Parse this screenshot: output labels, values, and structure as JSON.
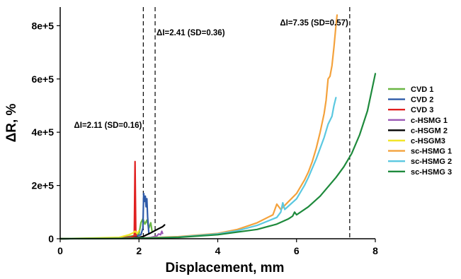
{
  "chart_data": {
    "type": "line",
    "xlabel": "Displacement, mm",
    "ylabel": "ΔR, %",
    "xlim": [
      0,
      8
    ],
    "ylim": [
      0,
      870000
    ],
    "x_ticks": [
      0,
      2,
      4,
      6,
      8
    ],
    "x_tick_labels": [
      "0",
      "2",
      "4",
      "6",
      "8"
    ],
    "y_ticks": [
      0,
      200000,
      400000,
      600000,
      800000
    ],
    "y_tick_labels": [
      "0",
      "2e+5",
      "4e+5",
      "6e+5",
      "8e+5"
    ],
    "grid": false,
    "legend_position": "right",
    "reference_lines": [
      {
        "x": 2.11,
        "label": "ΔI=2.11 (SD=0.16)"
      },
      {
        "x": 2.41,
        "label": "ΔI=2.41 (SD=0.36)"
      },
      {
        "x": 7.35,
        "label": "ΔI=7.35 (SD=0.57)"
      }
    ],
    "series": [
      {
        "name": "CVD 1",
        "color": "#6ab644",
        "x": [
          0,
          1.5,
          1.9,
          2.0,
          2.05,
          2.1,
          2.15,
          2.2,
          2.25,
          2.3,
          2.33
        ],
        "y": [
          0,
          3000,
          12000,
          18000,
          60000,
          75000,
          55000,
          70000,
          40000,
          60000,
          30000
        ]
      },
      {
        "name": "CVD 2",
        "color": "#2e5aa8",
        "x": [
          0,
          1.5,
          1.9,
          2.05,
          2.1,
          2.12,
          2.14,
          2.16,
          2.18,
          2.2,
          2.22,
          2.25
        ],
        "y": [
          0,
          2000,
          8000,
          15000,
          40000,
          170000,
          140000,
          160000,
          120000,
          150000,
          80000,
          20000
        ]
      },
      {
        "name": "CVD 3",
        "color": "#e02020",
        "x": [
          0,
          1.5,
          1.8,
          1.88,
          1.9,
          1.92,
          1.93,
          1.95
        ],
        "y": [
          0,
          2000,
          6000,
          10000,
          290000,
          20000,
          5000,
          2000
        ]
      },
      {
        "name": "c-HSMG 1",
        "color": "#9b59b6",
        "x": [
          0,
          2.0,
          2.3,
          2.45,
          2.5,
          2.55,
          2.58,
          2.6
        ],
        "y": [
          0,
          2000,
          5000,
          10000,
          18000,
          15000,
          28000,
          20000
        ]
      },
      {
        "name": "c-HSGM 2",
        "color": "#000000",
        "x": [
          0,
          1.8,
          2.0,
          2.1,
          2.2,
          2.3,
          2.4,
          2.5,
          2.6,
          2.65
        ],
        "y": [
          0,
          2000,
          5000,
          8000,
          15000,
          22000,
          30000,
          38000,
          45000,
          52000
        ]
      },
      {
        "name": "c-HSGM3",
        "color": "#f2e52a",
        "x": [
          0,
          1.5,
          1.75,
          1.85,
          1.9,
          1.95,
          2.0
        ],
        "y": [
          0,
          5000,
          15000,
          22000,
          28000,
          20000,
          30000
        ]
      },
      {
        "name": "sc-HSMG 1",
        "color": "#f4a23c",
        "x": [
          0,
          2.0,
          3.0,
          4.0,
          4.5,
          5.0,
          5.4,
          5.5,
          5.6,
          5.8,
          6.0,
          6.2,
          6.3,
          6.4,
          6.5,
          6.6,
          6.7,
          6.75,
          6.8,
          6.85,
          6.9,
          6.95,
          7.0,
          7.03
        ],
        "y": [
          0,
          2000,
          8000,
          20000,
          35000,
          60000,
          90000,
          130000,
          110000,
          140000,
          170000,
          220000,
          250000,
          290000,
          340000,
          400000,
          470000,
          520000,
          600000,
          610000,
          650000,
          720000,
          800000,
          840000
        ]
      },
      {
        "name": "sc-HSMG 2",
        "color": "#5bc8e0",
        "x": [
          0,
          2.0,
          3.0,
          4.0,
          4.5,
          5.0,
          5.5,
          5.6,
          5.65,
          5.7,
          6.0,
          6.2,
          6.3,
          6.5,
          6.7,
          6.8,
          6.9,
          6.95,
          7.0
        ],
        "y": [
          0,
          1500,
          6000,
          18000,
          30000,
          50000,
          80000,
          100000,
          135000,
          110000,
          150000,
          200000,
          230000,
          300000,
          380000,
          430000,
          460000,
          500000,
          530000
        ]
      },
      {
        "name": "sc-HSMG 3",
        "color": "#1e8a3c",
        "x": [
          0,
          2.0,
          3.0,
          4.0,
          5.0,
          5.5,
          5.8,
          5.9,
          5.95,
          6.0,
          6.3,
          6.6,
          7.0,
          7.2,
          7.4,
          7.6,
          7.8,
          8.0
        ],
        "y": [
          0,
          1500,
          5000,
          15000,
          35000,
          55000,
          75000,
          85000,
          100000,
          90000,
          120000,
          160000,
          230000,
          270000,
          320000,
          390000,
          480000,
          620000
        ]
      }
    ]
  }
}
